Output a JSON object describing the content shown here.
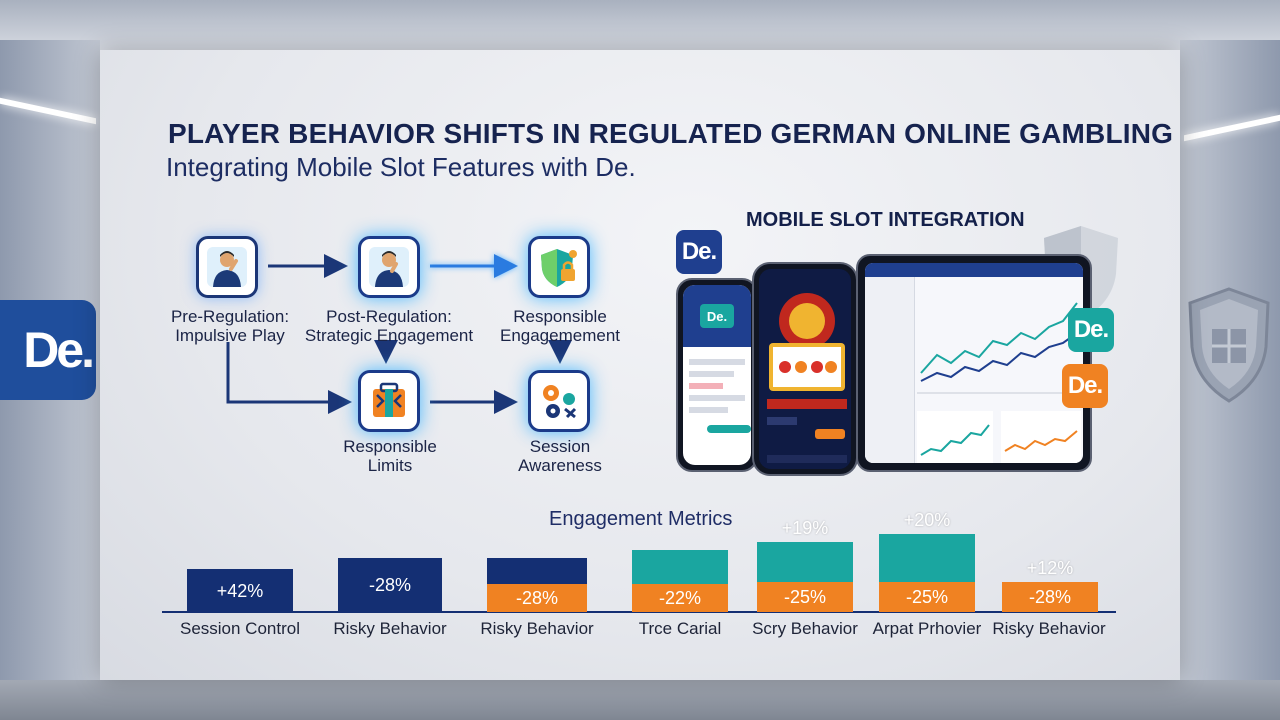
{
  "title": "PLAYER BEHAVIOR SHIFTS IN REGULATED GERMAN ONLINE GAMBLING",
  "subtitle": "Integrating Mobile Slot Features with De.",
  "brand": "De.",
  "colors": {
    "navy": "#142f73",
    "orange": "#f08222",
    "teal": "#1aa6a0",
    "blue": "#1f4e9c"
  },
  "flow": {
    "nodes": [
      {
        "id": "pre",
        "line1": "Pre-Regulation:",
        "line2": "Impulsive Play",
        "icon": "stressed-person-icon"
      },
      {
        "id": "post",
        "line1": "Post-Regulation:",
        "line2": "Strategic Engagement",
        "icon": "thinking-person-icon"
      },
      {
        "id": "resp-eng",
        "line1": "Responsible",
        "line2": "Engagemement",
        "icon": "shield-lock-icon"
      },
      {
        "id": "limits",
        "line1": "Responsible",
        "line2": "Limits",
        "icon": "limits-toolbox-icon"
      },
      {
        "id": "session",
        "line1": "Session",
        "line2": "Awareness",
        "icon": "gear-network-icon"
      }
    ]
  },
  "mobile": {
    "title": "MOBILE SLOT INTEGRATION",
    "devices": [
      "left-phone",
      "center-phone",
      "tablet"
    ]
  },
  "metrics": {
    "title": "Engagement Metrics",
    "chart_data": {
      "type": "bar",
      "categories": [
        "Session Control",
        "Risky Behavior",
        "Risky Behavior",
        "Trce Carial",
        "Scry Behavior",
        "Arpat Prhovier",
        "Risky Behavior"
      ],
      "series": [
        {
          "values": [
            "+42%",
            "-28%",
            "",
            "",
            "",
            "",
            ""
          ]
        },
        {
          "values": [
            "",
            "",
            "-28%",
            "-22%",
            "-25%",
            "-25%",
            "-28%"
          ]
        },
        {
          "values": [
            "",
            "",
            "",
            "",
            "+19%",
            "+20%",
            "+12%"
          ]
        }
      ],
      "bars": [
        {
          "cat": "Session Control",
          "stack": [
            {
              "color": "navy",
              "label": "+42%"
            }
          ],
          "top": ""
        },
        {
          "cat": "Risky Behavior",
          "stack": [
            {
              "color": "navy",
              "label": "-28%"
            }
          ],
          "top": ""
        },
        {
          "cat": "Risky Behavior",
          "stack": [
            {
              "color": "orange",
              "label": "-28%"
            },
            {
              "color": "navy",
              "label": ""
            }
          ],
          "top": ""
        },
        {
          "cat": "Trce Carial",
          "stack": [
            {
              "color": "orange",
              "label": "-22%"
            },
            {
              "color": "teal",
              "label": ""
            }
          ],
          "top": ""
        },
        {
          "cat": "Scry Behavior",
          "stack": [
            {
              "color": "orange",
              "label": "-25%"
            },
            {
              "color": "teal",
              "label": ""
            }
          ],
          "top": "+19%"
        },
        {
          "cat": "Arpat Prhovier",
          "stack": [
            {
              "color": "orange",
              "label": "-25%"
            },
            {
              "color": "teal",
              "label": ""
            }
          ],
          "top": "+20%"
        },
        {
          "cat": "Risky Behavior",
          "stack": [
            {
              "color": "orange",
              "label": "-28%"
            }
          ],
          "top": "+12%"
        }
      ]
    }
  }
}
